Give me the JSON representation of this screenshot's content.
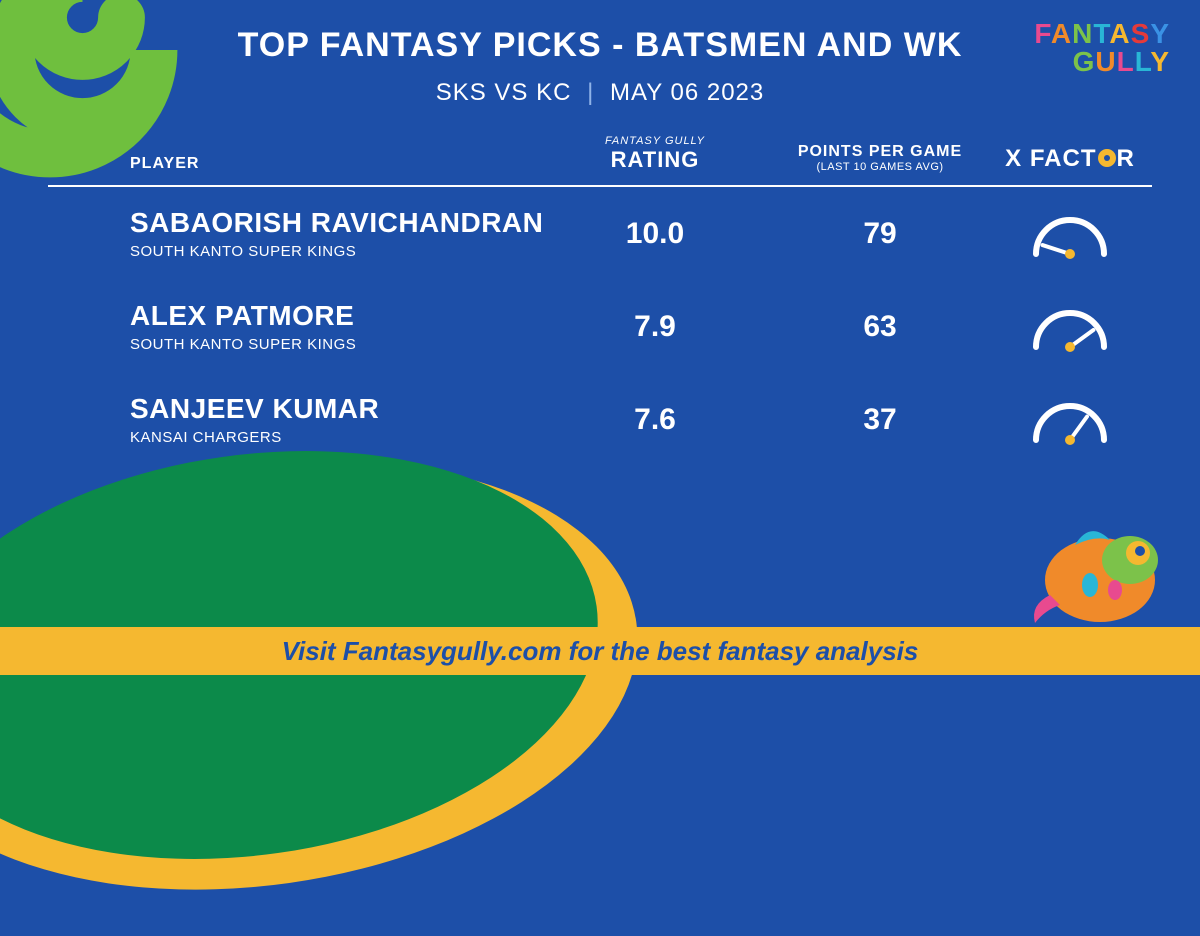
{
  "brand": {
    "line1_letters": [
      {
        "ch": "F",
        "c": "#e84a8f"
      },
      {
        "ch": "A",
        "c": "#f08a2a"
      },
      {
        "ch": "N",
        "c": "#7cc24a"
      },
      {
        "ch": "T",
        "c": "#29b6d6"
      },
      {
        "ch": "A",
        "c": "#f5b830"
      },
      {
        "ch": "S",
        "c": "#e53a3a"
      },
      {
        "ch": "Y",
        "c": "#3a92e5"
      }
    ],
    "line2_letters": [
      {
        "ch": "G",
        "c": "#7cc24a"
      },
      {
        "ch": "U",
        "c": "#f08a2a"
      },
      {
        "ch": "L",
        "c": "#e84a8f"
      },
      {
        "ch": "L",
        "c": "#29b6d6"
      },
      {
        "ch": "Y",
        "c": "#f5b830"
      }
    ]
  },
  "title": "TOP FANTASY PICKS - BATSMEN AND WK",
  "match": {
    "teams": "SKS VS KC",
    "date": "MAY 06 2023"
  },
  "headers": {
    "player": "PLAYER",
    "rating_small": "FANTASY GULLY",
    "rating_big": "RATING",
    "ppg_big": "POINTS PER GAME",
    "ppg_small": "(LAST 10 GAMES AVG)",
    "xfactor_pre": "X FACT",
    "xfactor_post": "R"
  },
  "players": [
    {
      "name": "SABAORISH RAVICHANDRAN",
      "team": "SOUTH KANTO SUPER KINGS",
      "rating": "10.0",
      "ppg": "79",
      "gauge": 10
    },
    {
      "name": "ALEX PATMORE",
      "team": "SOUTH KANTO SUPER KINGS",
      "rating": "7.9",
      "ppg": "63",
      "gauge": 80
    },
    {
      "name": "SANJEEV KUMAR",
      "team": "KANSAI CHARGERS",
      "rating": "7.6",
      "ppg": "37",
      "gauge": 70
    }
  ],
  "cta": "Visit Fantasygully.com for the best fantasy analysis",
  "colors": {
    "background": "#1d4fa8",
    "accent_yellow": "#f5b830",
    "accent_green": "#0c8a4a",
    "swirl_green": "#6fbf3e",
    "text": "#ffffff",
    "gauge_stroke": "#ffffff",
    "gauge_dot": "#f5b830",
    "divider": "#ffffff"
  },
  "gauge_style": {
    "stroke_width": 6,
    "dot_radius": 5
  }
}
